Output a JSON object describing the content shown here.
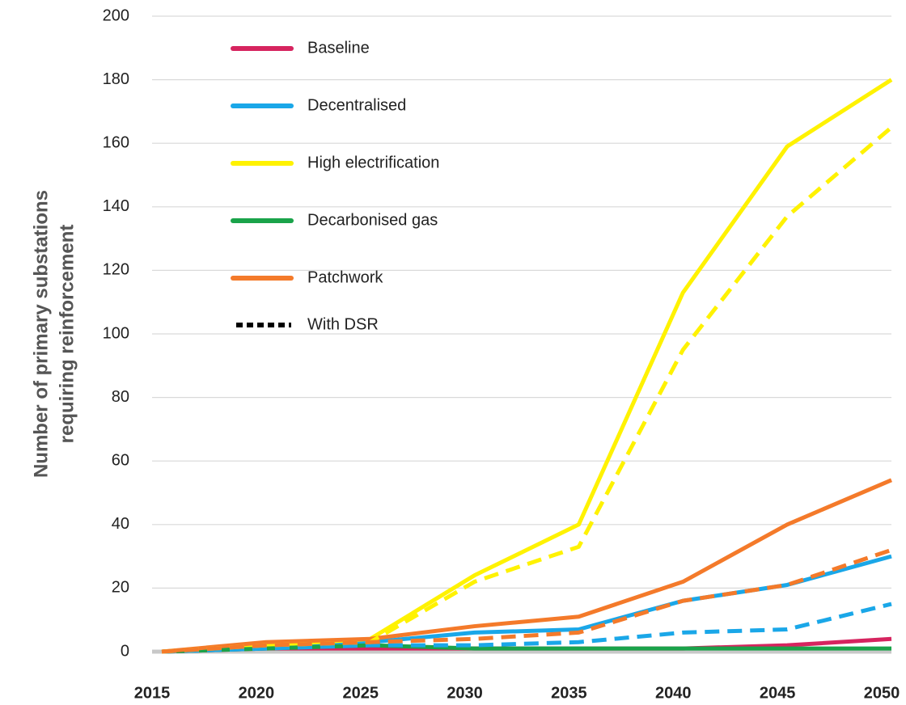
{
  "chart_data": {
    "type": "line",
    "ylabel": [
      "Number of primary substations",
      "requiring reinforcement"
    ],
    "x": [
      2015,
      2020,
      2025,
      2030,
      2035,
      2040,
      2045,
      2050
    ],
    "xlim": [
      2015,
      2050
    ],
    "xticks": [
      2015,
      2020,
      2025,
      2030,
      2035,
      2040,
      2045,
      2050
    ],
    "ylim": [
      0,
      200
    ],
    "yticks": [
      0,
      20,
      40,
      60,
      80,
      100,
      120,
      140,
      160,
      180,
      200
    ],
    "grid": true,
    "legend": "upper left",
    "dsr_label": "With DSR",
    "series": [
      {
        "name": "Baseline",
        "color": "#d6245f",
        "values": [
          0,
          1,
          1,
          1,
          1,
          1,
          2,
          4
        ]
      },
      {
        "name": "Decentralised",
        "color": "#1aa7e8",
        "values": [
          0,
          2,
          3,
          6,
          7,
          16,
          21,
          30
        ],
        "dsr_values": [
          0,
          1,
          2,
          2,
          3,
          6,
          7,
          15
        ]
      },
      {
        "name": "High electrification",
        "color": "#fff200",
        "values": [
          0,
          2,
          4,
          24,
          40,
          113,
          159,
          180
        ],
        "dsr_values": [
          0,
          2,
          3,
          22,
          33,
          95,
          137,
          165
        ]
      },
      {
        "name": "Decarbonised gas",
        "color": "#1aa34a",
        "values": [
          0,
          1,
          2,
          1,
          1,
          1,
          1,
          1
        ]
      },
      {
        "name": "Patchwork",
        "color": "#f47a2a",
        "values": [
          0,
          3,
          4,
          8,
          11,
          22,
          40,
          54
        ],
        "dsr_values": [
          0,
          2,
          3,
          4,
          6,
          16,
          21,
          32
        ]
      }
    ]
  }
}
